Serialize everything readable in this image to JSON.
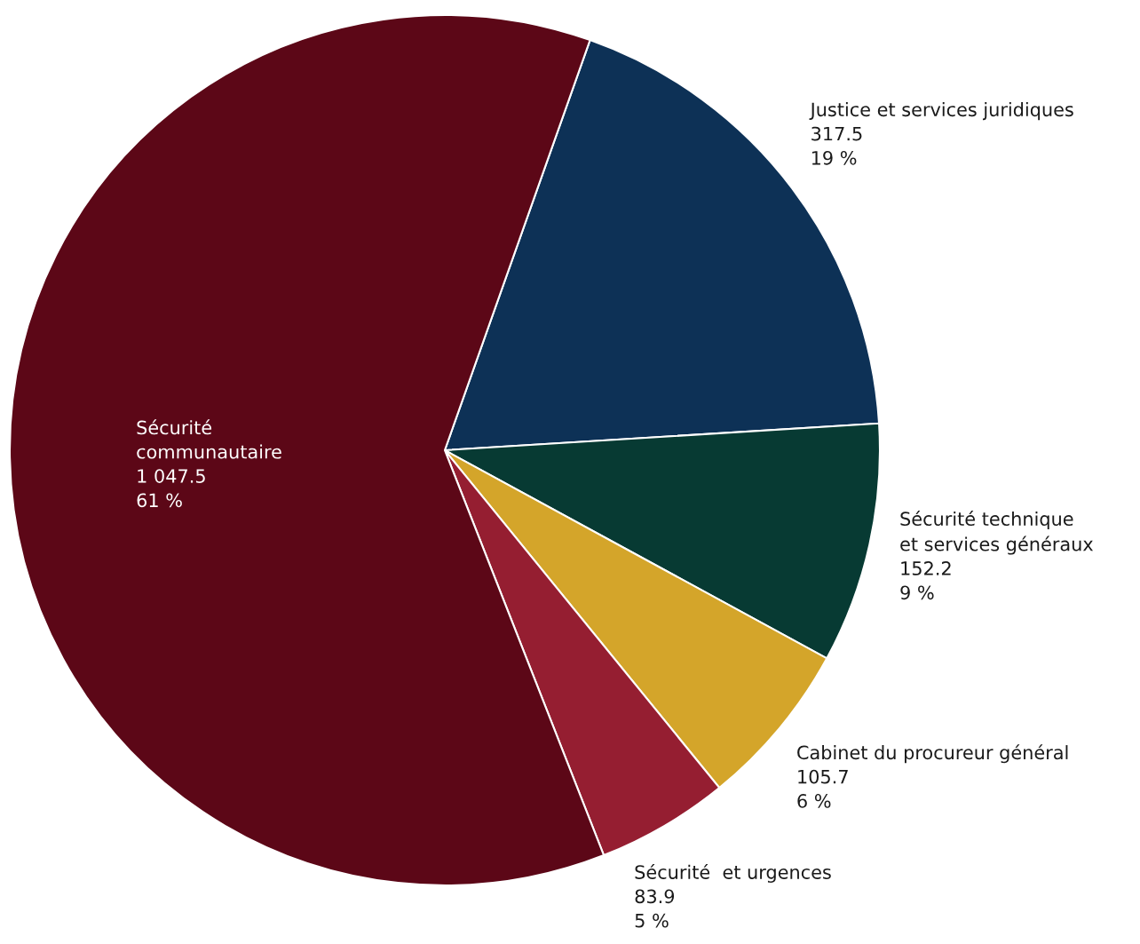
{
  "chart_data": {
    "type": "pie",
    "categories": [
      "Justice et services juridiques",
      "Sécurité technique\net services généraux",
      "Cabinet du procureur général",
      "Sécurité  et urgences",
      "Sécurité\ncommunautaire"
    ],
    "values": [
      317.5,
      152.2,
      105.7,
      83.9,
      1047.5
    ],
    "colors": [
      "#0d3156",
      "#073a33",
      "#d4a52a",
      "#951e31",
      "#5c0717"
    ],
    "value_labels": [
      "317.5\n19 %",
      "152.2\n9 %",
      "105.7\n6 %",
      "83.9\n5 %",
      "1 047.5\n61 %"
    ]
  }
}
